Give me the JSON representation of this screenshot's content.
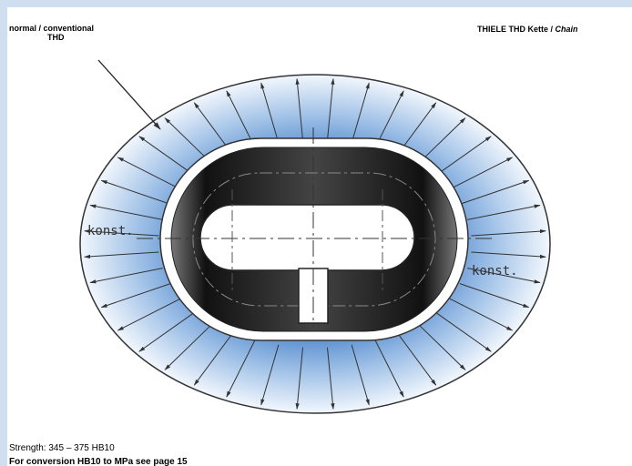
{
  "header": {
    "left_line1": "normal / conventional",
    "left_line2": "THD",
    "right_text": "THIELE THD Kette / ",
    "right_italic": "Chain"
  },
  "diagram": {
    "label_left": "konst.",
    "label_right": "konst."
  },
  "footer": {
    "strength": "Strength: 345 – 375 HB10",
    "conversion": "For conversion HB10 to MPa see page 15"
  }
}
